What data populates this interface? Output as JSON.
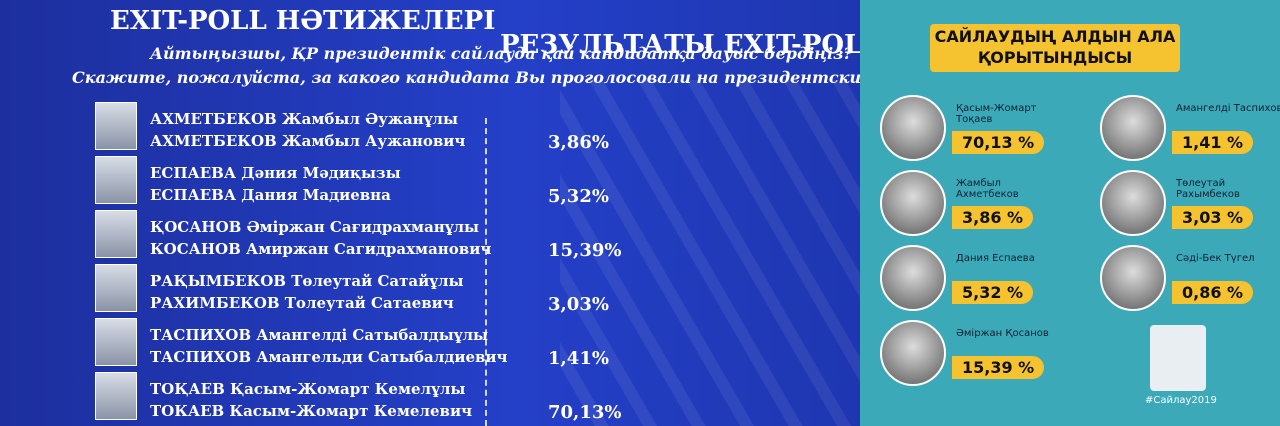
{
  "left": {
    "title_kz": "EXIT-POLL НӘТИЖЕЛЕРІ",
    "title_ru": "РЕЗУЛЬТАТЫ EXIT-POLL",
    "question_kz": "Айтыңызшы, ҚР президентік сайлауда қай кандидатқа дауыс бердіңіз?",
    "question_ru": "Скажите, пожалуйста, за какого кандидата Вы проголосовали на президентских выборах Р",
    "rows": [
      {
        "name_kz": "АХМЕТБЕКОВ Жамбыл Әужанұлы",
        "name_ru": "АХМЕТБЕКОВ Жамбыл Аужанович",
        "result": "3,86%"
      },
      {
        "name_kz": "ЕСПАЕВА Дәния Мәдиқызы",
        "name_ru": "ЕСПАЕВА Дания Мадиевна",
        "result": "5,32%"
      },
      {
        "name_kz": "ҚОСАНОВ Әміржан Сағидрахманұлы",
        "name_ru": "КОСАНОВ Амиржан Сагидрахманович",
        "result": "15,39%"
      },
      {
        "name_kz": "РАҚЫМБЕКОВ Төлеутай Сатайұлы",
        "name_ru": "РАХИМБЕКОВ Толеутай Сатаевич",
        "result": "3,03%"
      },
      {
        "name_kz": "ТАСПИХОВ Амангелді Сатыбалдыұлы",
        "name_ru": "ТАСПИХОВ Амангельди Сатыбалдиевич",
        "result": "1,41%"
      },
      {
        "name_kz": "ТОҚАЕВ Қасым-Жомарт Кемелұлы",
        "name_ru": "ТОКАЕВ Касым-Жомарт Кемелевич",
        "result": "70,13%"
      }
    ]
  },
  "right": {
    "title": "САЙЛАУДЫҢ АЛДЫН АЛА ҚОРЫТЫНДЫСЫ",
    "hashtag": "#Сайлау2019",
    "candidates": [
      {
        "name": "Қасым-Жомарт Тоқаев",
        "result": "70,13 %"
      },
      {
        "name": "Жамбыл Ахметбеков",
        "result": "3,86 %"
      },
      {
        "name": "Дания Еспаева",
        "result": "5,32 %"
      },
      {
        "name": "Әміржан Қосанов",
        "result": "15,39 %"
      },
      {
        "name": "Амангелді Таспихов",
        "result": "1,41 %"
      },
      {
        "name": "Төлеутай Рахымбеков",
        "result": "3,03 %"
      },
      {
        "name": "Сәді-Бек Түгел",
        "result": "0,86 %"
      }
    ]
  }
}
